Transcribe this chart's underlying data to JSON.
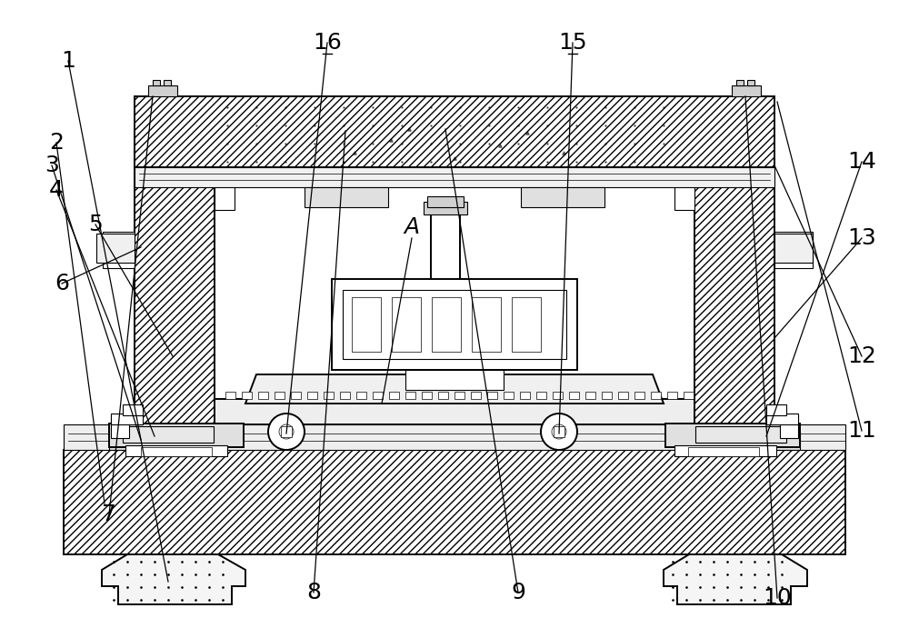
{
  "bg": "#ffffff",
  "lc": "#000000",
  "font_size": 18
}
